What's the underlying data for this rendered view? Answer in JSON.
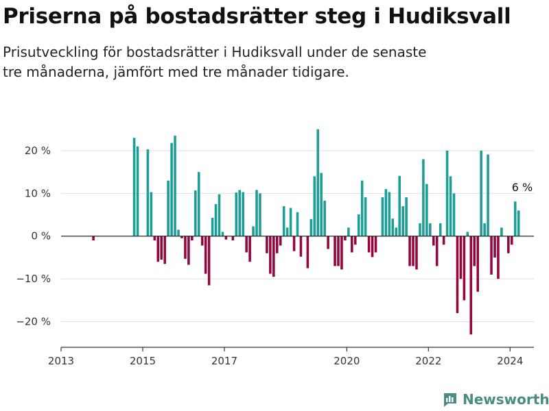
{
  "title": "Priserna på bostadsrätter steg i Hudiksvall",
  "subtitle": "Prisutveckling för bostadsrätter i Hudiksvall under de senaste tre månaderna, jämfört med tre månader tidigare.",
  "brand": {
    "name": "Newsworthy",
    "color": "#4a8c84"
  },
  "colors": {
    "positive": "#1a9e96",
    "negative": "#95063c",
    "grid": "#dddddd",
    "axis": "#333333"
  },
  "chart_data": {
    "type": "bar",
    "x_ticks": [
      "2013",
      "2015",
      "2017",
      "2020",
      "2022",
      "2024"
    ],
    "y_ticks": [
      "20 %",
      "10 %",
      "0 %",
      "−10 %",
      "−20 %"
    ],
    "y_tick_values": [
      20,
      10,
      0,
      -10,
      -20
    ],
    "xlim": [
      "2013-01",
      "2024-08"
    ],
    "ylim": [
      -26,
      28
    ],
    "grid": true,
    "annotation": {
      "label": "6 %",
      "date": "2024-01",
      "value": 6
    },
    "series": [
      {
        "points": [
          [
            "2013-10",
            -1
          ],
          [
            "2014-10",
            23
          ],
          [
            "2014-11",
            21
          ],
          [
            "2015-02",
            20.3
          ],
          [
            "2015-03",
            10.3
          ],
          [
            "2015-04",
            -1
          ],
          [
            "2015-05",
            -6
          ],
          [
            "2015-06",
            -5.5
          ],
          [
            "2015-07",
            -6.5
          ],
          [
            "2015-08",
            13
          ],
          [
            "2015-09",
            21.8
          ],
          [
            "2015-10",
            23.5
          ],
          [
            "2015-11",
            1.5
          ],
          [
            "2015-12",
            -0.5
          ],
          [
            "2016-01",
            -5.3
          ],
          [
            "2016-02",
            -6.7
          ],
          [
            "2016-03",
            -1
          ],
          [
            "2016-04",
            10.7
          ],
          [
            "2016-05",
            15
          ],
          [
            "2016-06",
            -2.2
          ],
          [
            "2016-07",
            -8.8
          ],
          [
            "2016-08",
            -11.5
          ],
          [
            "2016-09",
            4.3
          ],
          [
            "2016-10",
            7.5
          ],
          [
            "2016-11",
            9.8
          ],
          [
            "2016-12",
            1
          ],
          [
            "2017-01",
            -0.8
          ],
          [
            "2017-03",
            -1
          ],
          [
            "2017-04",
            10.2
          ],
          [
            "2017-05",
            10.8
          ],
          [
            "2017-06",
            10.3
          ],
          [
            "2017-07",
            -3.8
          ],
          [
            "2017-08",
            -6
          ],
          [
            "2017-09",
            2.3
          ],
          [
            "2017-10",
            10.8
          ],
          [
            "2017-11",
            10
          ],
          [
            "2018-01",
            -4
          ],
          [
            "2018-02",
            -8.8
          ],
          [
            "2018-03",
            -9.5
          ],
          [
            "2018-04",
            -4
          ],
          [
            "2018-05",
            -2.2
          ],
          [
            "2018-06",
            7
          ],
          [
            "2018-07",
            2
          ],
          [
            "2018-08",
            6.6
          ],
          [
            "2018-09",
            -3.5
          ],
          [
            "2018-10",
            5.6
          ],
          [
            "2018-11",
            -4.8
          ],
          [
            "2019-01",
            -7.5
          ],
          [
            "2019-02",
            4
          ],
          [
            "2019-03",
            14
          ],
          [
            "2019-04",
            25
          ],
          [
            "2019-05",
            14.8
          ],
          [
            "2019-06",
            8.3
          ],
          [
            "2019-07",
            -3
          ],
          [
            "2019-09",
            -7
          ],
          [
            "2019-10",
            -7
          ],
          [
            "2019-11",
            -7.8
          ],
          [
            "2019-12",
            -1
          ],
          [
            "2020-01",
            2
          ],
          [
            "2020-02",
            -3.8
          ],
          [
            "2020-03",
            -2
          ],
          [
            "2020-04",
            5.1
          ],
          [
            "2020-05",
            13
          ],
          [
            "2020-06",
            9.1
          ],
          [
            "2020-07",
            -3.8
          ],
          [
            "2020-08",
            -4.9
          ],
          [
            "2020-09",
            -3.8
          ],
          [
            "2020-11",
            9.1
          ],
          [
            "2020-12",
            11
          ],
          [
            "2021-01",
            10.3
          ],
          [
            "2021-02",
            4.1
          ],
          [
            "2021-03",
            2
          ],
          [
            "2021-04",
            14.1
          ],
          [
            "2021-05",
            7
          ],
          [
            "2021-06",
            9.1
          ],
          [
            "2021-07",
            -7
          ],
          [
            "2021-08",
            -7
          ],
          [
            "2021-09",
            -7.8
          ],
          [
            "2021-10",
            3
          ],
          [
            "2021-11",
            18
          ],
          [
            "2021-12",
            12.2
          ],
          [
            "2022-01",
            3
          ],
          [
            "2022-02",
            -2.2
          ],
          [
            "2022-03",
            -7
          ],
          [
            "2022-04",
            3
          ],
          [
            "2022-05",
            -2
          ],
          [
            "2022-06",
            20
          ],
          [
            "2022-07",
            14
          ],
          [
            "2022-08",
            10
          ],
          [
            "2022-09",
            -18
          ],
          [
            "2022-10",
            -10
          ],
          [
            "2022-11",
            -15
          ],
          [
            "2022-12",
            1
          ],
          [
            "2023-01",
            -23
          ],
          [
            "2023-02",
            -7
          ],
          [
            "2023-03",
            -13
          ],
          [
            "2023-04",
            20
          ],
          [
            "2023-05",
            3
          ],
          [
            "2023-06",
            19.1
          ],
          [
            "2023-07",
            -9
          ],
          [
            "2023-08",
            -5
          ],
          [
            "2023-09",
            -10
          ],
          [
            "2023-10",
            2
          ],
          [
            "2023-12",
            -4
          ],
          [
            "2024-01",
            -2
          ],
          [
            "2024-02",
            8.1
          ],
          [
            "2024-03",
            6
          ]
        ]
      }
    ]
  }
}
